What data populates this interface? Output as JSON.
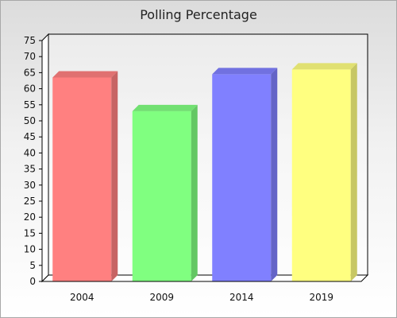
{
  "chart_data": {
    "type": "bar",
    "title": "Polling Percentage",
    "xlabel": "",
    "ylabel": "",
    "categories": [
      "2004",
      "2009",
      "2014",
      "2019"
    ],
    "values": [
      63.5,
      53,
      64.5,
      66
    ],
    "colors": [
      "#ff8080",
      "#80ff80",
      "#8080ff",
      "#ffff80"
    ],
    "ylim": [
      0,
      75
    ],
    "ytick_step": 5,
    "ytick_labels": [
      "0",
      "5",
      "10",
      "15",
      "20",
      "25",
      "30",
      "35",
      "40",
      "45",
      "50",
      "55",
      "60",
      "65",
      "70",
      "75"
    ],
    "grid": false,
    "legend": "none",
    "style": "3d-bar"
  }
}
